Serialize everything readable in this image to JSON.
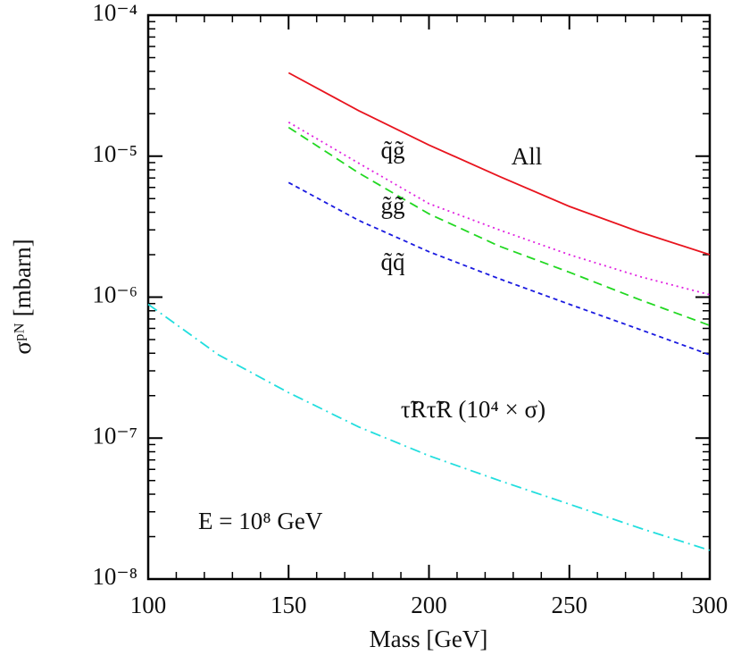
{
  "chart_data": {
    "type": "line",
    "xlabel": "Mass [GeV]",
    "ylabel": "σᵖᴺ [mbarn]",
    "xlim": [
      100,
      300
    ],
    "xticks": [
      100,
      150,
      200,
      250,
      300
    ],
    "ylim": [
      1e-08,
      0.0001
    ],
    "ylog": true,
    "yticks": [
      {
        "value": 1e-08,
        "label": "10⁻⁸"
      },
      {
        "value": 1e-07,
        "label": "10⁻⁷"
      },
      {
        "value": 1e-06,
        "label": "10⁻⁶"
      },
      {
        "value": 1e-05,
        "label": "10⁻⁵"
      },
      {
        "value": 0.0001,
        "label": "10⁻⁴"
      }
    ],
    "series": [
      {
        "name": "All",
        "color": "#e8141e",
        "dash": "solid",
        "x": [
          150,
          175,
          200,
          225,
          250,
          275,
          300
        ],
        "values": [
          3.9e-05,
          2.1e-05,
          1.2e-05,
          7.2e-06,
          4.4e-06,
          2.9e-06,
          2e-06
        ]
      },
      {
        "name": "q̃g̃",
        "color": "#e020e0",
        "dash": "dotted",
        "x": [
          150,
          175,
          200,
          225,
          250,
          275,
          300
        ],
        "values": [
          1.74e-05,
          8.9e-06,
          4.6e-06,
          3e-06,
          2e-06,
          1.4e-06,
          1.04e-06
        ]
      },
      {
        "name": "g̃g̃",
        "color": "#22d822",
        "dash": "dashed",
        "x": [
          150,
          175,
          200,
          225,
          250,
          275,
          300
        ],
        "values": [
          1.6e-05,
          7.6e-06,
          3.9e-06,
          2.3e-06,
          1.5e-06,
          9.6e-07,
          6.3e-07
        ]
      },
      {
        "name": "q̃q̃",
        "color": "#1a1ae0",
        "dash": "short-dashed",
        "x": [
          150,
          175,
          200,
          225,
          250,
          275,
          300
        ],
        "values": [
          6.5e-06,
          3.5e-06,
          2.1e-06,
          1.35e-06,
          8.9e-07,
          5.9e-07,
          3.9e-07
        ]
      },
      {
        "name": "τ̃Rτ̃R (10⁴ × σ)",
        "color": "#22dede",
        "dash": "dash-dot",
        "x": [
          100,
          125,
          150,
          175,
          200,
          225,
          250,
          275,
          300
        ],
        "values": [
          8.9e-07,
          3.9e-07,
          2.1e-07,
          1.2e-07,
          7.5e-08,
          5e-08,
          3.4e-08,
          2.3e-08,
          1.6e-08
        ]
      }
    ],
    "annotations": [
      "E = 10⁸ GeV"
    ]
  }
}
